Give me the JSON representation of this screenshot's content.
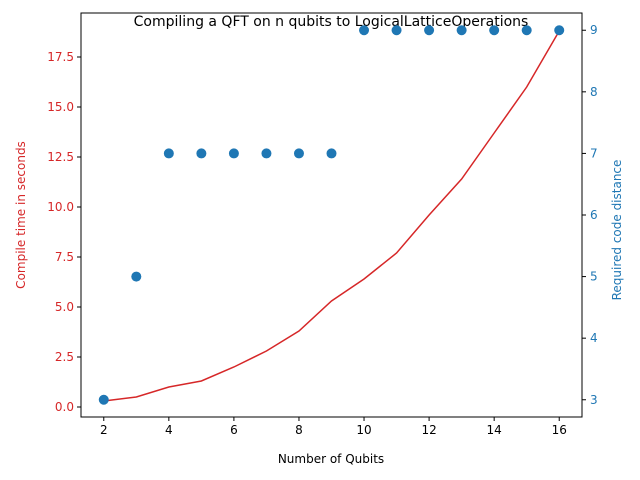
{
  "chart_data": {
    "type": "line",
    "title": "Compiling a QFT on n qubits to LogicalLatticeOperations",
    "xlabel": "Number of Qubits",
    "ylabel_left": "Compile time in seconds",
    "ylabel_right": "Required code distance",
    "x": [
      2,
      3,
      4,
      5,
      6,
      7,
      8,
      9,
      10,
      11,
      12,
      13,
      14,
      15,
      16
    ],
    "x_ticks": [
      2,
      4,
      6,
      8,
      10,
      12,
      14,
      16
    ],
    "xlim": [
      1.3,
      16.7
    ],
    "left_ylim": [
      -0.5,
      19.7
    ],
    "left_ticks": [
      "0.0",
      "2.5",
      "5.0",
      "7.5",
      "10.0",
      "12.5",
      "15.0",
      "17.5"
    ],
    "right_ylim": [
      2.72,
      9.28
    ],
    "right_ticks": [
      "3",
      "4",
      "5",
      "6",
      "7",
      "8",
      "9"
    ],
    "series": [
      {
        "type": "line",
        "axis": "left",
        "color": "#d62728",
        "values": [
          0.3,
          0.5,
          1.0,
          1.3,
          2.0,
          2.8,
          3.8,
          5.3,
          6.4,
          7.7,
          9.6,
          11.4,
          13.7,
          16.0,
          18.8
        ]
      },
      {
        "type": "scatter",
        "axis": "right",
        "color": "#1f77b4",
        "values": [
          3,
          5,
          7,
          7,
          7,
          7,
          7,
          7,
          9,
          9,
          9,
          9,
          9,
          9,
          9
        ]
      }
    ],
    "grid": false,
    "legend": "none"
  }
}
